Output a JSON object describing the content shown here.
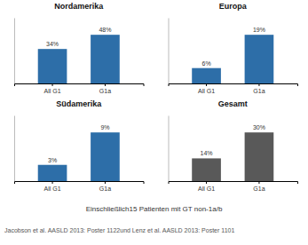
{
  "chart_data": [
    {
      "type": "bar",
      "title": "Nordamerika",
      "categories": [
        "All G1",
        "G1a"
      ],
      "values": [
        34,
        48
      ],
      "value_labels": [
        "34%",
        "48%"
      ],
      "color": "#2d6ea8",
      "ylim": [
        0,
        64.8
      ],
      "data_labels": true,
      "tick_labels": "x"
    },
    {
      "type": "bar",
      "title": "Europa",
      "categories": [
        "All G1",
        "G1a"
      ],
      "values": [
        6,
        19
      ],
      "value_labels": [
        "6%",
        "19%"
      ],
      "color": "#2d6ea8",
      "ylim": [
        0,
        25.65
      ],
      "data_labels": true,
      "tick_labels": "x"
    },
    {
      "type": "bar",
      "title": "Südamerika",
      "categories": [
        "All G1",
        "G1a"
      ],
      "values": [
        3,
        9
      ],
      "value_labels": [
        "3%",
        "9%"
      ],
      "color": "#2d6ea8",
      "ylim": [
        0,
        12.15
      ],
      "data_labels": true,
      "tick_labels": "x"
    },
    {
      "type": "bar",
      "title": "Gesamt",
      "categories": [
        "All G1",
        "G1a"
      ],
      "values": [
        14,
        30
      ],
      "value_labels": [
        "14%",
        "30%"
      ],
      "color": "#595959",
      "ylim": [
        0,
        40.5
      ],
      "data_labels": true,
      "tick_labels": "x",
      "annotations": [
        "Einschließlich15 Patienten mit GT non-1a/b",
        "Jacobson et al. AASLD 2013: Poster 1122und Lenz et al. AASLD 2013: Poster 1101"
      ]
    }
  ]
}
